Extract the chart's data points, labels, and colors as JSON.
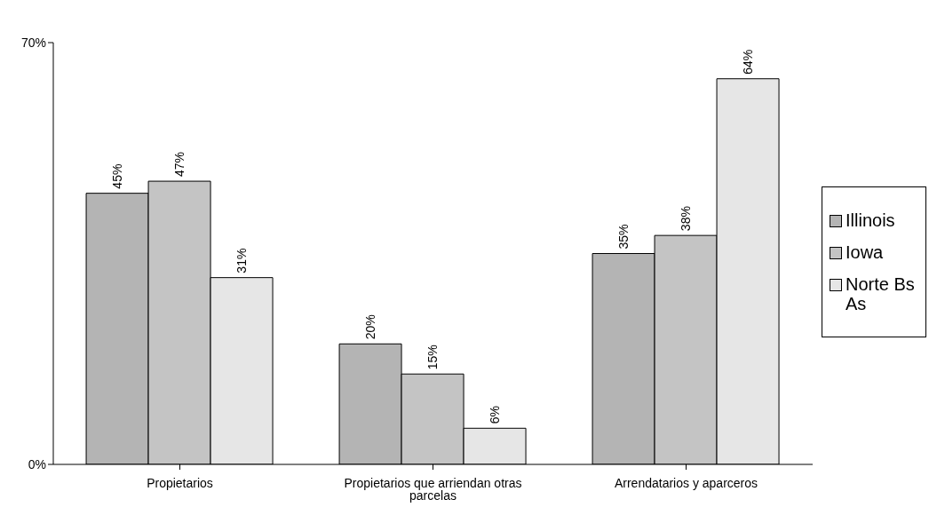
{
  "chart_data": {
    "type": "bar",
    "categories": [
      "Propietarios",
      "Propietarios que arriendan otras parcelas",
      "Arrendatarios y aparceros"
    ],
    "series": [
      {
        "name": "Illinois",
        "color": "#b4b4b4",
        "values": [
          45,
          20,
          35
        ],
        "value_labels": [
          "45%",
          "20%",
          "35%"
        ]
      },
      {
        "name": "Iowa",
        "color": "#c4c4c4",
        "values": [
          47,
          15,
          38
        ],
        "value_labels": [
          "47%",
          "15%",
          "38%"
        ]
      },
      {
        "name": "Norte Bs As",
        "color": "#e6e6e6",
        "values": [
          31,
          6,
          64
        ],
        "value_labels": [
          "31%",
          "6%",
          "64%"
        ]
      }
    ],
    "ylim": [
      0,
      70
    ],
    "yticks": [
      {
        "value": 0,
        "label": "0%"
      },
      {
        "value": 70,
        "label": "70%"
      }
    ],
    "grid": false,
    "legend": "right"
  }
}
